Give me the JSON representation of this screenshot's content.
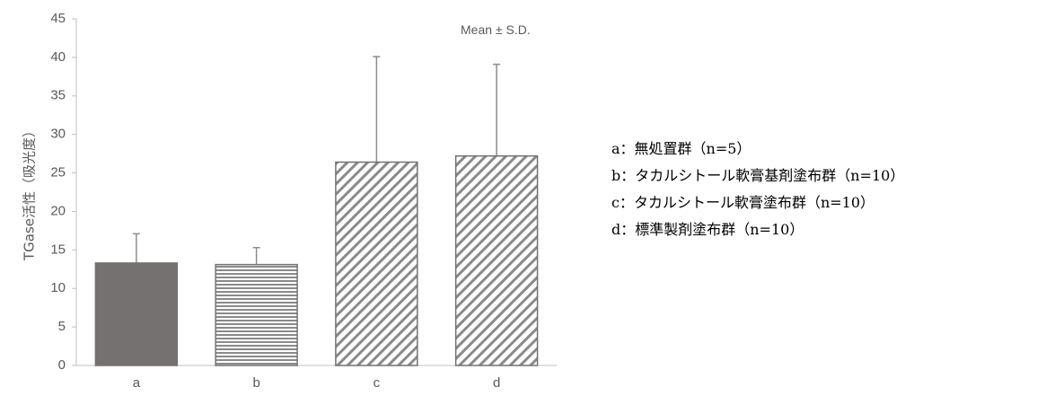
{
  "chart_data": {
    "type": "bar",
    "categories": [
      "a",
      "b",
      "c",
      "d"
    ],
    "values": [
      13.3,
      13.1,
      26.4,
      27.2
    ],
    "error_sd": [
      3.8,
      2.2,
      13.7,
      11.9
    ],
    "ylabel": "TGase活性（吸光度）",
    "ylim": [
      0,
      45
    ],
    "yticks": [
      0,
      5,
      10,
      15,
      20,
      25,
      30,
      35,
      40,
      45
    ],
    "annotation": "Mean ± S.D.",
    "grid": false,
    "bar_patterns": [
      "solid",
      "horizontal-lines",
      "diagonal-hatch",
      "diagonal-hatch"
    ],
    "colors": {
      "fill": "#767171",
      "pattern": "#8a8a8a",
      "axis": "#bfbfbf",
      "text": "#595959"
    },
    "legend": {
      "position": "right",
      "items": [
        "a：無処置群（n=5）",
        "b：タカルシトール軟膏基剤塗布群（n=10）",
        "c：タカルシトール軟膏塗布群（n=10）",
        "d：標準製剤塗布群（n=10）"
      ]
    }
  }
}
